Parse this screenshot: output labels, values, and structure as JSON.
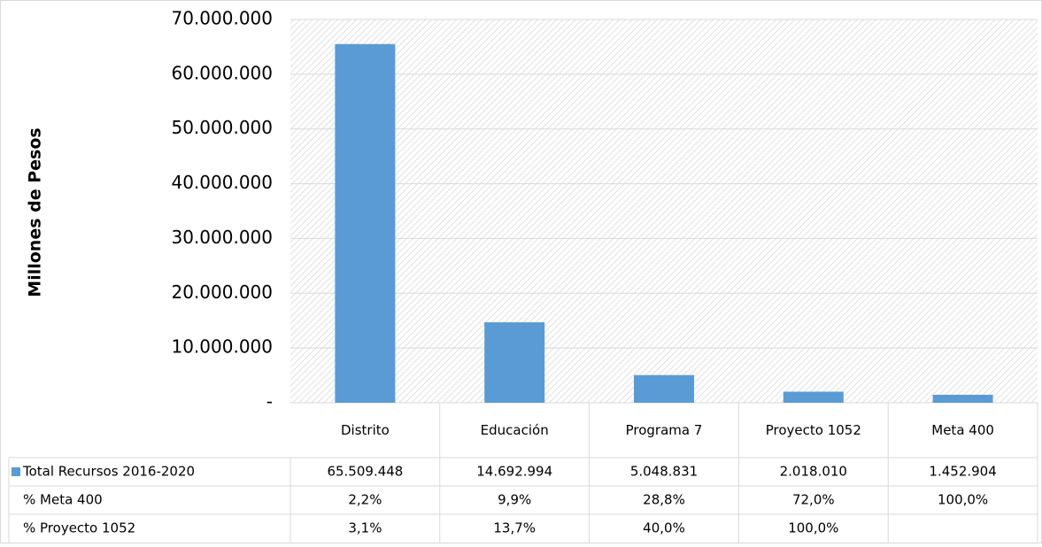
{
  "chart_data": {
    "type": "bar",
    "y_axis_label": "Millones de Pesos",
    "categories": [
      "Distrito",
      "Educación",
      "Programa 7",
      "Proyecto 1052",
      "Meta 400"
    ],
    "series": [
      {
        "name": "Total Recursos 2016-2020",
        "color": "#5b9bd5",
        "values": [
          65509448,
          14692994,
          5048831,
          2018010,
          1452904
        ],
        "value_labels": [
          "65.509.448",
          "14.692.994",
          "5.048.831",
          "2.018.010",
          "1.452.904"
        ]
      }
    ],
    "ylim": [
      0,
      70000000
    ],
    "yticks": [
      {
        "value": 0,
        "label": "-"
      },
      {
        "value": 10000000,
        "label": "10.000.000"
      },
      {
        "value": 20000000,
        "label": "20.000.000"
      },
      {
        "value": 30000000,
        "label": "30.000.000"
      },
      {
        "value": 40000000,
        "label": "40.000.000"
      },
      {
        "value": 50000000,
        "label": "50.000.000"
      },
      {
        "value": 60000000,
        "label": "60.000.000"
      },
      {
        "value": 70000000,
        "label": "70.000.000"
      }
    ],
    "grid": true,
    "data_table": {
      "rows": [
        {
          "name": "% Meta 400",
          "values": [
            2.2,
            9.9,
            28.8,
            72.0,
            100.0
          ],
          "value_labels": [
            "2,2%",
            "9,9%",
            "28,8%",
            "72,0%",
            "100,0%"
          ]
        },
        {
          "name": "% Proyecto 1052",
          "values": [
            3.1,
            13.7,
            40.0,
            100.0,
            null
          ],
          "value_labels": [
            "3,1%",
            "13,7%",
            "40,0%",
            "100,0%",
            null
          ]
        }
      ]
    }
  }
}
